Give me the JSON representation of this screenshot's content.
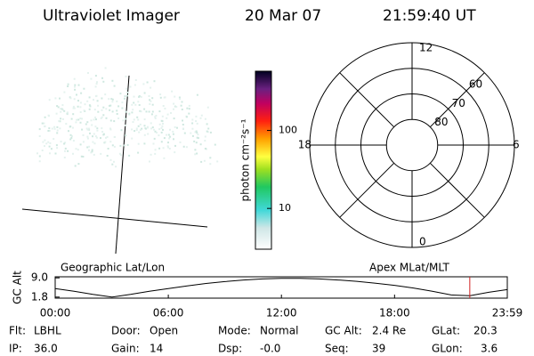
{
  "header": {
    "instrument": "Ultraviolet Imager",
    "date": "20 Mar 07",
    "time": "21:59:40 UT"
  },
  "colorbar": {
    "label": "photon cm⁻²s⁻¹",
    "scale": "log",
    "lim": [
      3,
      575
    ],
    "ticks": [
      10,
      100
    ]
  },
  "polar_plot": {
    "mlat_lim": [
      50,
      90
    ],
    "mlat_rings": [
      60,
      70,
      80
    ],
    "mlt_labels": [
      12,
      18,
      6,
      0
    ]
  },
  "map_labels": {
    "left": "Geographic Lat/Lon",
    "right": "Apex MLat/MLT"
  },
  "altitude_plot": {
    "ylabel": "GC Alt",
    "ylim": [
      1.4,
      9.4
    ],
    "yticks": [
      {
        "value": 9,
        "label": "9.0"
      },
      1.8
    ],
    "xlim": [
      0,
      23.98
    ],
    "xticks": [
      {
        "value": 0,
        "label": "00:00"
      },
      {
        "value": 6,
        "label": "06:00"
      },
      {
        "value": 12,
        "label": "12:00"
      },
      {
        "value": 18,
        "label": "18:00"
      },
      {
        "value": 23.98,
        "label": "23:59"
      }
    ],
    "x": [
      0,
      1,
      2,
      3,
      4,
      5,
      6,
      7,
      8,
      9,
      10,
      11,
      12,
      13,
      14,
      15,
      16,
      17,
      18,
      19,
      20,
      21,
      22,
      23,
      23.98
    ],
    "values": [
      5.0,
      4.0,
      2.8,
      1.8,
      2.8,
      4.0,
      5.0,
      6.0,
      6.9,
      7.6,
      8.2,
      8.6,
      8.8,
      8.8,
      8.6,
      8.2,
      7.7,
      7.0,
      6.2,
      5.2,
      4.0,
      2.6,
      2.3,
      3.6,
      4.6
    ],
    "marker_x": 21.99,
    "marker_color": "#d02020"
  },
  "info": [
    [
      {
        "label": "Flt:",
        "value": "LBHL"
      },
      {
        "label": "Door:",
        "value": "Open"
      },
      {
        "label": "Mode:",
        "value": "Normal"
      },
      {
        "label": "GC Alt:",
        "value": "2.4 Re"
      },
      {
        "label": "GLat:",
        "value": "20.3"
      }
    ],
    [
      {
        "label": "IP:",
        "value": "36.0"
      },
      {
        "label": "Gain:",
        "value": "14"
      },
      {
        "label": "Dsp:",
        "value": "-0.0"
      },
      {
        "label": "Seq:",
        "value": "39"
      },
      {
        "label": "GLon:",
        "value": "3.6"
      }
    ]
  ]
}
